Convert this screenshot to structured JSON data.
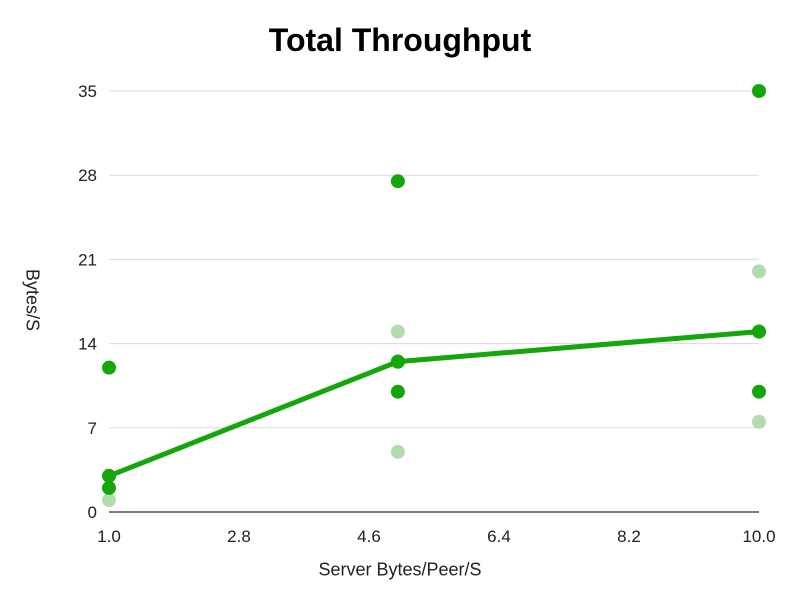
{
  "chart_data": {
    "type": "scatter",
    "title": "Total Throughput",
    "xlabel": "Server Bytes/Peer/S",
    "ylabel": "Bytes/S",
    "xlim": [
      1.0,
      10.0
    ],
    "ylim": [
      0,
      35
    ],
    "x_ticks": [
      "1.0",
      "2.8",
      "4.6",
      "6.4",
      "8.2",
      "10.0"
    ],
    "y_ticks": [
      "0",
      "7",
      "14",
      "21",
      "28",
      "35"
    ],
    "grid": true,
    "legend": "none",
    "colors": {
      "primary": "#14a60b",
      "light": "#b3dcae",
      "grid": "#d9d9d9"
    },
    "series": [
      {
        "color": "#14a60b",
        "points": [
          [
            1.0,
            2
          ],
          [
            1.0,
            12
          ],
          [
            5.0,
            27.5
          ],
          [
            5.0,
            12.5
          ],
          [
            5.0,
            10
          ],
          [
            10.0,
            35
          ],
          [
            10.0,
            15
          ],
          [
            10.0,
            10
          ]
        ]
      },
      {
        "color": "#b3dcae",
        "points": [
          [
            1.0,
            3
          ],
          [
            1.0,
            1
          ],
          [
            5.0,
            15
          ],
          [
            5.0,
            5
          ],
          [
            10.0,
            20
          ],
          [
            10.0,
            7.5
          ]
        ]
      },
      {
        "color": "#14a60b",
        "type": "line",
        "points": [
          [
            1.0,
            3
          ],
          [
            5.0,
            12.5
          ],
          [
            10.0,
            15
          ]
        ]
      }
    ]
  }
}
